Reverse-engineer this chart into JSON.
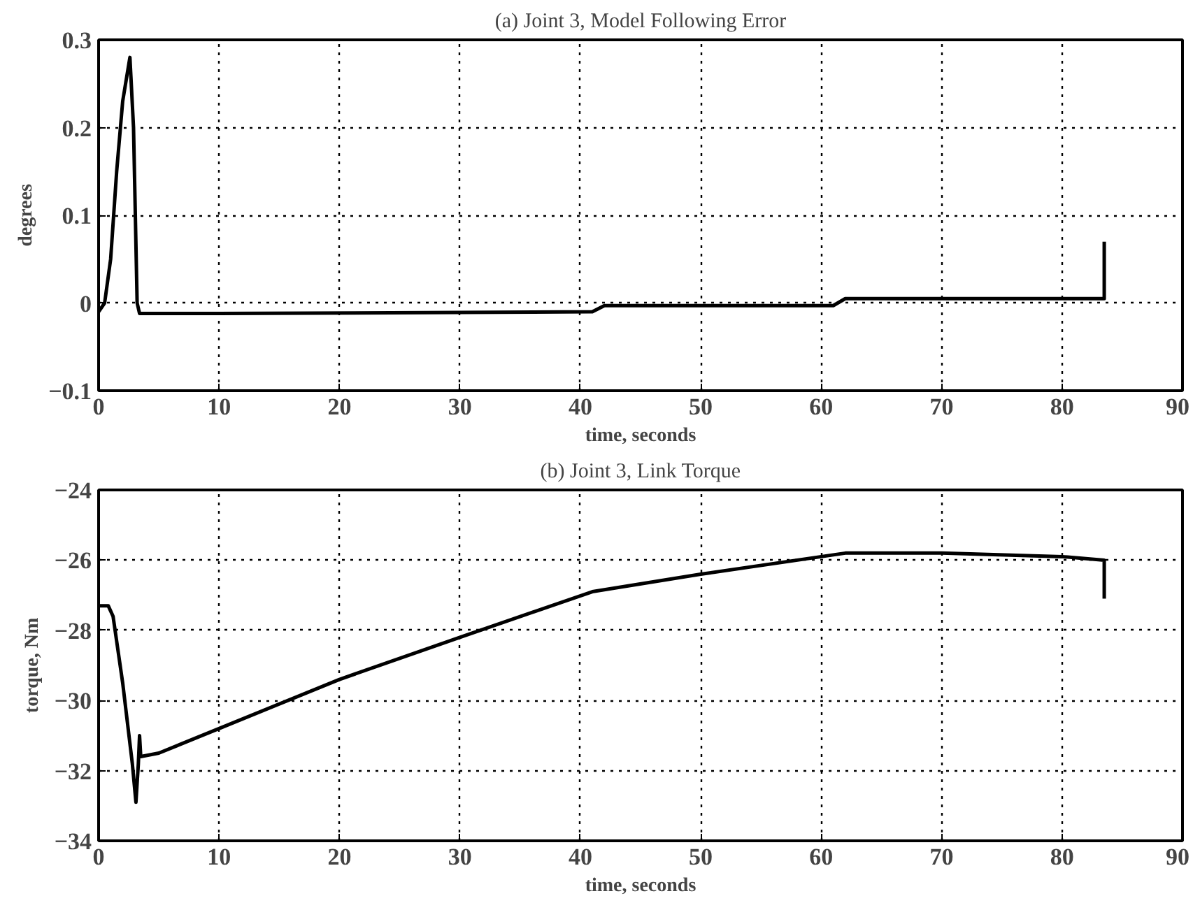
{
  "chart_data": [
    {
      "type": "line",
      "title": "(a) Joint 3, Model Following Error",
      "xlabel": "time, seconds",
      "ylabel": "degrees",
      "xlim": [
        0,
        90
      ],
      "xticks": [
        0,
        10,
        20,
        30,
        40,
        50,
        60,
        70,
        80,
        90
      ],
      "ylim": [
        -0.1,
        0.3
      ],
      "yticks": [
        -0.1,
        0,
        0.1,
        0.2,
        0.3
      ],
      "grid": true,
      "line_style": "solid",
      "series": [
        {
          "color": "#000000",
          "x": [
            0,
            0.5,
            1,
            1.5,
            2,
            2.6,
            2.9,
            3.2,
            3.4,
            10,
            41,
            42,
            61,
            62,
            83.5,
            83.5
          ],
          "values": [
            -0.01,
            0,
            0.05,
            0.15,
            0.23,
            0.28,
            0.2,
            0,
            -0.012,
            -0.012,
            -0.01,
            -0.003,
            -0.003,
            0.005,
            0.005,
            0.07
          ]
        }
      ]
    },
    {
      "type": "line",
      "title": "(b) Joint 3, Link Torque",
      "xlabel": "time, seconds",
      "ylabel": "torque, Nm",
      "xlim": [
        0,
        90
      ],
      "xticks": [
        0,
        10,
        20,
        30,
        40,
        50,
        60,
        70,
        80,
        90
      ],
      "ylim": [
        -34,
        -24
      ],
      "yticks": [
        -34,
        -32,
        -30,
        -28,
        -26,
        -24
      ],
      "grid": true,
      "line_style": "solid",
      "series": [
        {
          "color": "#000000",
          "x": [
            0,
            0.8,
            1.2,
            2,
            2.8,
            3.1,
            3.3,
            3.4,
            3.5,
            5,
            10,
            20,
            30,
            41,
            50,
            62,
            70,
            80,
            83.5,
            83.5
          ],
          "values": [
            -27.3,
            -27.3,
            -27.6,
            -29.5,
            -31.8,
            -32.9,
            -31.8,
            -31,
            -31.6,
            -31.5,
            -30.8,
            -29.4,
            -28.2,
            -26.9,
            -26.4,
            -25.8,
            -25.8,
            -25.9,
            -26.0,
            -27.1
          ]
        }
      ]
    }
  ]
}
